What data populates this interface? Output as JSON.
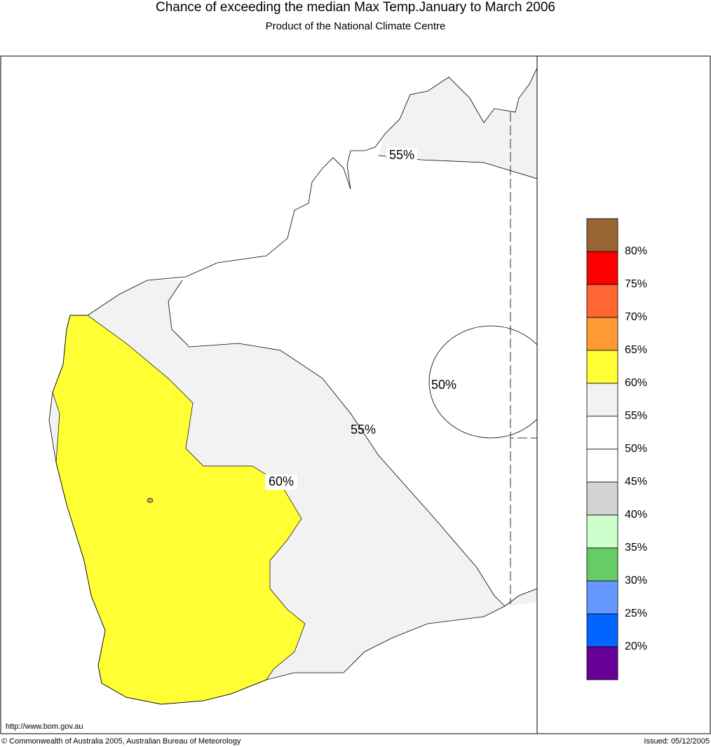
{
  "header": {
    "title": "Chance of exceeding the median Max Temp.January to March 2006",
    "subtitle": "Product of the National Climate Centre"
  },
  "map": {
    "contour_labels": [
      "55%",
      "50%",
      "55%",
      "60%"
    ]
  },
  "legend": {
    "colors": [
      "#996633",
      "#ff0000",
      "#ff6633",
      "#ff9933",
      "#ffff33",
      "#f2f2f2",
      "#ffffff",
      "#ffffff",
      "#d3d3d3",
      "#ccffcc",
      "#66cc66",
      "#6699ff",
      "#0066ff",
      "#660099"
    ],
    "labels": [
      "80%",
      "75%",
      "70%",
      "65%",
      "60%",
      "55%",
      "50%",
      "45%",
      "40%",
      "35%",
      "30%",
      "25%",
      "20%"
    ]
  },
  "footer": {
    "url": "http://www.bom.gov.au",
    "copyright": "© Commonwealth of Australia 2005, Australian Bureau of Meteorology",
    "issued": "Issued: 05/12/2005"
  }
}
